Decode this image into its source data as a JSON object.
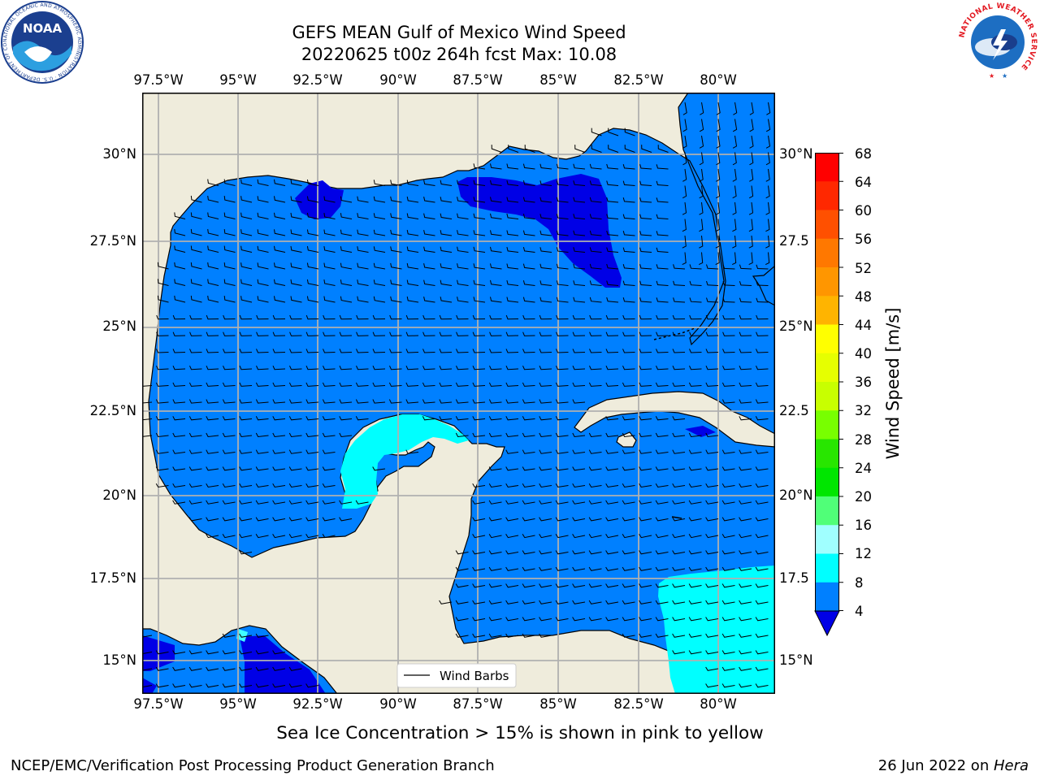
{
  "header": {
    "title_line1": "GEFS MEAN Gulf of Mexico Wind Speed",
    "title_line2": "20220625 t00z 264h fcst   Max: 10.08"
  },
  "logos": {
    "noaa": {
      "name": "noaa-logo",
      "text": "NOAA",
      "ring_text": "NATIONAL OCEANIC AND ATMOSPHERIC ADMINISTRATION · U.S. DEPARTMENT OF COMMERCE"
    },
    "nws": {
      "name": "nws-logo",
      "ring_text": "NATIONAL WEATHER SERVICE"
    }
  },
  "map": {
    "lon_labels": [
      "97.5°W",
      "95°W",
      "92.5°W",
      "90°W",
      "87.5°W",
      "85°W",
      "82.5°W",
      "80°W"
    ],
    "lat_labels_left": [
      "30°N",
      "27.5°N",
      "25°N",
      "22.5°N",
      "20°N",
      "17.5°N",
      "15°N"
    ],
    "lat_labels_right": [
      "30°N",
      "27.5",
      "25°N",
      "22.5",
      "20°N",
      "17.5",
      "15°N"
    ],
    "legend_label": "Wind Barbs",
    "colors": {
      "land": "#efecdc",
      "ocean_4_8": "#0080ff",
      "ocean_below_4": "#0000e6",
      "ocean_8_12": "#00ffff",
      "ocean_12_16": "#40ffff",
      "grid": "#b0b0b0",
      "coast": "#000000"
    }
  },
  "colorbar": {
    "label": "Wind Speed [m/s]",
    "ticks": [
      "68",
      "64",
      "60",
      "56",
      "52",
      "48",
      "44",
      "40",
      "36",
      "32",
      "28",
      "24",
      "20",
      "16",
      "12",
      "8",
      "4"
    ],
    "colors_top_to_bottom": [
      "#ff0000",
      "#ff2800",
      "#ff5000",
      "#ff7800",
      "#ff9600",
      "#ffb400",
      "#ffd200",
      "#ffff00",
      "#e6ff00",
      "#c8ff00",
      "#78ff00",
      "#28e600",
      "#00e600",
      "#50ff78",
      "#a0ffff",
      "#40ffff",
      "#00ffff",
      "#0080ff"
    ],
    "extend_color": "#0000e6"
  },
  "footer": {
    "subtitle": "Sea Ice Concentration > 15% is shown in pink to yellow",
    "credit": "NCEP/EMC/Verification Post Processing Product Generation Branch",
    "date_prefix": "26 Jun 2022 on ",
    "host": "Hera"
  }
}
